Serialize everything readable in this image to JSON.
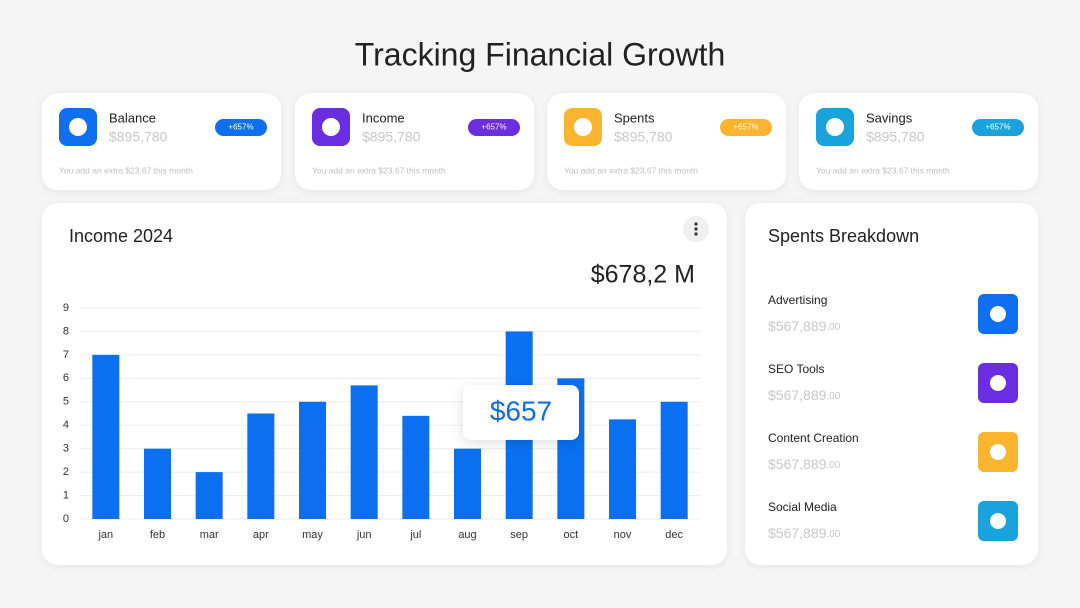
{
  "title": "Tracking Financial Growth",
  "cards": [
    {
      "label": "Balance",
      "amount": "$895,780",
      "badge": "+657%",
      "note": "You add an extra $23,67 this month",
      "color": "#0e6ff0"
    },
    {
      "label": "Income",
      "amount": "$895,780",
      "badge": "+657%",
      "note": "You add an extra $23,67 this month",
      "color": "#6a2de0"
    },
    {
      "label": "Spents",
      "amount": "$895,780",
      "badge": "+657%",
      "note": "You add an extra $23,67 this month",
      "color": "#fbb42d"
    },
    {
      "label": "Savings",
      "amount": "$895,780",
      "badge": "+657%",
      "note": "You add an extra $23,67 this month",
      "color": "#1aa2dc"
    }
  ],
  "chart_data": {
    "type": "bar",
    "title": "Income 2024",
    "total": "$678,2 M",
    "callout": "$657",
    "categories": [
      "jan",
      "feb",
      "mar",
      "apr",
      "may",
      "jun",
      "jul",
      "aug",
      "sep",
      "oct",
      "nov",
      "dec"
    ],
    "values": [
      7,
      3,
      2,
      4.5,
      5,
      5.7,
      4.4,
      3,
      8,
      6,
      4.25,
      5
    ],
    "color": "#0a6ff0",
    "ylim": [
      0,
      9
    ],
    "yticks": [
      0,
      1,
      2,
      3,
      4,
      5,
      6,
      7,
      8,
      9
    ],
    "grid": true
  },
  "breakdown": {
    "title": "Spents Breakdown",
    "items": [
      {
        "name": "Advertising",
        "amount": "$567,889",
        "cents": ".00",
        "color": "#0e6ff0"
      },
      {
        "name": "SEO Tools",
        "amount": "$567,889",
        "cents": ".00",
        "color": "#6a2de0"
      },
      {
        "name": "Content Creation",
        "amount": "$567,889",
        "cents": ".00",
        "color": "#fbb42d"
      },
      {
        "name": "Social Media",
        "amount": "$567,889",
        "cents": ".00",
        "color": "#1aa2dc"
      }
    ]
  }
}
